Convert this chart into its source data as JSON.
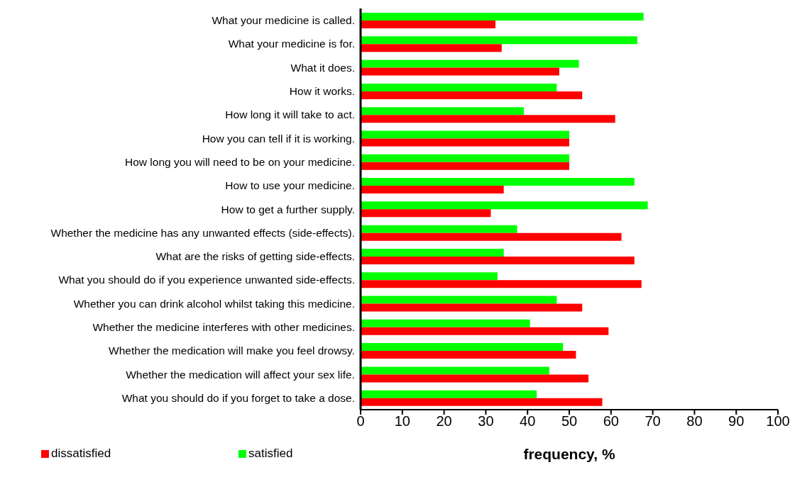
{
  "chart_data": {
    "type": "bar",
    "orientation": "horizontal",
    "xlabel": "frequency, %",
    "categories": [
      "What your medicine is called.",
      "What your medicine is for.",
      "What it does.",
      "How it works.",
      "How long it will take to act.",
      "How you can tell if it is working.",
      "How long you will need to be on your medicine.",
      "How to use your medicine.",
      "How to get a further supply.",
      "Whether the medicine has any unwanted effects (side-effects).",
      "What are the risks of getting side-effects.",
      "What you should do if you experience unwanted side-effects.",
      "Whether you can drink alcohol whilst taking this medicine.",
      "Whether the medicine interferes with other medicines.",
      "Whether the medication will make you feel drowsy.",
      "Whether the medication will affect your sex life.",
      "What you should do if you forget to take a dose."
    ],
    "series": [
      {
        "name": "dissatisfied",
        "color": "#ff0000",
        "values": [
          32.3,
          33.8,
          47.6,
          53.1,
          61.0,
          50.0,
          50.0,
          34.3,
          31.2,
          62.5,
          65.6,
          67.3,
          53.1,
          59.4,
          51.6,
          54.6,
          57.9
        ]
      },
      {
        "name": "satisfied",
        "color": "#00ff00",
        "values": [
          67.8,
          66.3,
          52.3,
          47.0,
          39.1,
          50.0,
          50.0,
          65.6,
          68.8,
          37.5,
          34.3,
          32.8,
          47.0,
          40.6,
          48.5,
          45.2,
          42.2
        ]
      }
    ],
    "xlim": [
      0,
      100
    ],
    "xticks": [
      0,
      10,
      20,
      30,
      40,
      50,
      60,
      70,
      80,
      90,
      100
    ],
    "grid": false,
    "legend": "bottom left"
  }
}
